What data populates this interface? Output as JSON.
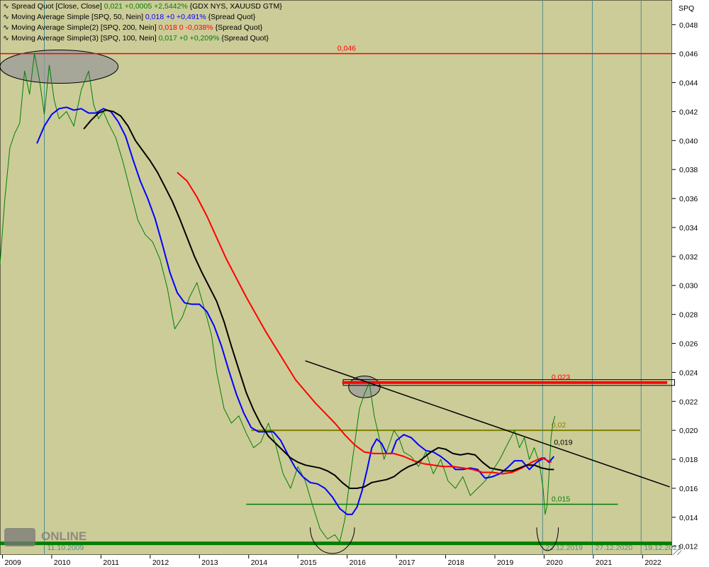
{
  "chart_data": {
    "type": "line",
    "axis_unit_label": "SPQ",
    "x_range": [
      2008.95,
      2022.6
    ],
    "ylim": [
      0.0114,
      0.0497
    ],
    "y_ticks": [
      {
        "v": 0.048,
        "label": "0,048"
      },
      {
        "v": 0.046,
        "label": "0,046"
      },
      {
        "v": 0.044,
        "label": "0,044"
      },
      {
        "v": 0.042,
        "label": "0,042"
      },
      {
        "v": 0.04,
        "label": "0,040"
      },
      {
        "v": 0.038,
        "label": "0,038"
      },
      {
        "v": 0.036,
        "label": "0,036"
      },
      {
        "v": 0.034,
        "label": "0,034"
      },
      {
        "v": 0.032,
        "label": "0,032"
      },
      {
        "v": 0.03,
        "label": "0,030"
      },
      {
        "v": 0.028,
        "label": "0,028"
      },
      {
        "v": 0.026,
        "label": "0,026"
      },
      {
        "v": 0.024,
        "label": "0,024"
      },
      {
        "v": 0.022,
        "label": "0,022"
      },
      {
        "v": 0.02,
        "label": "0,020"
      },
      {
        "v": 0.018,
        "label": "0,018"
      },
      {
        "v": 0.016,
        "label": "0,016"
      },
      {
        "v": 0.014,
        "label": "0,014"
      },
      {
        "v": 0.012,
        "label": "0,012"
      }
    ],
    "x_ticks": [
      {
        "v": 2009.0,
        "label": "2009"
      },
      {
        "v": 2010.0,
        "label": "2010"
      },
      {
        "v": 2011.0,
        "label": "2011"
      },
      {
        "v": 2012.0,
        "label": "2012"
      },
      {
        "v": 2013.0,
        "label": "2013"
      },
      {
        "v": 2014.0,
        "label": "2014"
      },
      {
        "v": 2015.0,
        "label": "2015"
      },
      {
        "v": 2016.0,
        "label": "2016"
      },
      {
        "v": 2017.0,
        "label": "2017"
      },
      {
        "v": 2018.0,
        "label": "2018"
      },
      {
        "v": 2019.0,
        "label": "2019"
      },
      {
        "v": 2020.0,
        "label": "2020"
      },
      {
        "v": 2021.0,
        "label": "2021"
      },
      {
        "v": 2022.0,
        "label": "2022"
      }
    ],
    "legend_entries": [
      {
        "name": "Spread Quot [Close, Close]",
        "value": "0,021",
        "change": "+0,0005",
        "pct": "+2,5442%",
        "suffix": "{GDX NYS, XAUUSD GTM}",
        "color": "#008000"
      },
      {
        "name": "Moving Average Simple [SPQ, 50, Nein]",
        "value": "0,018",
        "change": "+0",
        "pct": "+0,491%",
        "suffix": "{Spread Quot}",
        "color": "#0000ff"
      },
      {
        "name": "Moving Average Simple(2) [SPQ, 200, Nein]",
        "value": "0,018",
        "change": "0",
        "pct": "-0,038%",
        "suffix": "{Spread Quot}",
        "color": "#ff0000"
      },
      {
        "name": "Moving Average Simple(3) [SPQ, 100, Nein]",
        "value": "0,017",
        "change": "+0",
        "pct": "+0,209%",
        "suffix": "{Spread Quot}",
        "color": "#008000"
      }
    ],
    "legend_placement": "top-left",
    "grid": false,
    "series": [
      {
        "name": "Spread Quot",
        "color": "#008000",
        "width": 1,
        "x": [
          2008.95,
          2009.05,
          2009.15,
          2009.25,
          2009.35,
          2009.45,
          2009.55,
          2009.65,
          2009.75,
          2009.85,
          2009.95,
          2010.05,
          2010.15,
          2010.3,
          2010.45,
          2010.6,
          2010.75,
          2010.85,
          2010.95,
          2011.05,
          2011.15,
          2011.3,
          2011.45,
          2011.6,
          2011.75,
          2011.9,
          2012.05,
          2012.2,
          2012.35,
          2012.5,
          2012.65,
          2012.8,
          2012.95,
          2013.05,
          2013.15,
          2013.25,
          2013.35,
          2013.5,
          2013.65,
          2013.8,
          2013.95,
          2014.1,
          2014.25,
          2014.4,
          2014.55,
          2014.7,
          2014.85,
          2015.0,
          2015.15,
          2015.3,
          2015.45,
          2015.6,
          2015.75,
          2015.85,
          2015.95,
          2016.05,
          2016.15,
          2016.25,
          2016.35,
          2016.45,
          2016.55,
          2016.65,
          2016.75,
          2016.85,
          2016.95,
          2017.05,
          2017.15,
          2017.3,
          2017.45,
          2017.6,
          2017.75,
          2017.9,
          2018.05,
          2018.2,
          2018.35,
          2018.5,
          2018.65,
          2018.8,
          2018.95,
          2019.1,
          2019.25,
          2019.4,
          2019.5,
          2019.6,
          2019.7,
          2019.8,
          2019.9,
          2019.98,
          2020.02,
          2020.06,
          2020.1,
          2020.14,
          2020.18,
          2020.22
        ],
        "y": [
          0.0315,
          0.036,
          0.0395,
          0.0405,
          0.0412,
          0.0448,
          0.0432,
          0.046,
          0.0442,
          0.0418,
          0.0452,
          0.0428,
          0.0415,
          0.042,
          0.041,
          0.0435,
          0.0448,
          0.0425,
          0.0415,
          0.042,
          0.0412,
          0.0402,
          0.0385,
          0.0365,
          0.0345,
          0.0335,
          0.033,
          0.0318,
          0.0298,
          0.027,
          0.0278,
          0.0292,
          0.0302,
          0.029,
          0.0278,
          0.0265,
          0.024,
          0.0215,
          0.0205,
          0.021,
          0.0198,
          0.0188,
          0.0192,
          0.0205,
          0.019,
          0.017,
          0.016,
          0.0175,
          0.0165,
          0.0148,
          0.0132,
          0.0125,
          0.0128,
          0.0123,
          0.0138,
          0.0165,
          0.019,
          0.0215,
          0.0225,
          0.0233,
          0.021,
          0.0195,
          0.018,
          0.019,
          0.02,
          0.0195,
          0.0185,
          0.0182,
          0.0175,
          0.0185,
          0.017,
          0.018,
          0.0165,
          0.016,
          0.0168,
          0.0155,
          0.016,
          0.0165,
          0.0172,
          0.018,
          0.019,
          0.02,
          0.0188,
          0.0195,
          0.018,
          0.0188,
          0.0178,
          0.016,
          0.0142,
          0.0148,
          0.017,
          0.0195,
          0.0205,
          0.021
        ]
      },
      {
        "name": "Moving Average Simple [SPQ, 50, Nein]",
        "color": "#0000ff",
        "width": 2,
        "x": [
          2009.7,
          2009.85,
          2010.0,
          2010.15,
          2010.3,
          2010.45,
          2010.6,
          2010.75,
          2010.9,
          2011.05,
          2011.2,
          2011.35,
          2011.5,
          2011.65,
          2011.8,
          2011.95,
          2012.1,
          2012.25,
          2012.4,
          2012.55,
          2012.7,
          2012.85,
          2013.0,
          2013.15,
          2013.3,
          2013.45,
          2013.6,
          2013.75,
          2013.9,
          2014.05,
          2014.2,
          2014.35,
          2014.5,
          2014.65,
          2014.8,
          2014.95,
          2015.1,
          2015.25,
          2015.4,
          2015.55,
          2015.7,
          2015.85,
          2016.0,
          2016.1,
          2016.2,
          2016.3,
          2016.4,
          2016.5,
          2016.6,
          2016.7,
          2016.8,
          2016.9,
          2017.0,
          2017.15,
          2017.3,
          2017.45,
          2017.6,
          2017.75,
          2017.9,
          2018.05,
          2018.2,
          2018.35,
          2018.5,
          2018.65,
          2018.8,
          2018.95,
          2019.1,
          2019.25,
          2019.4,
          2019.55,
          2019.7,
          2019.85,
          2020.0,
          2020.1,
          2020.2
        ],
        "y": [
          0.0398,
          0.041,
          0.0418,
          0.0422,
          0.0423,
          0.0421,
          0.0422,
          0.0419,
          0.0419,
          0.0422,
          0.042,
          0.0413,
          0.0403,
          0.0387,
          0.0372,
          0.036,
          0.0346,
          0.0328,
          0.0309,
          0.0295,
          0.0288,
          0.0287,
          0.0287,
          0.0282,
          0.0272,
          0.0258,
          0.0241,
          0.0225,
          0.0212,
          0.0202,
          0.0199,
          0.0199,
          0.0199,
          0.0193,
          0.0183,
          0.0174,
          0.0168,
          0.0164,
          0.0163,
          0.016,
          0.0154,
          0.0146,
          0.0142,
          0.0142,
          0.0147,
          0.0158,
          0.0172,
          0.0188,
          0.0194,
          0.0191,
          0.0184,
          0.0184,
          0.0193,
          0.0197,
          0.0195,
          0.019,
          0.0186,
          0.0185,
          0.0182,
          0.0178,
          0.0173,
          0.0173,
          0.0174,
          0.0173,
          0.0167,
          0.0168,
          0.017,
          0.0174,
          0.0179,
          0.0179,
          0.0173,
          0.0178,
          0.0181,
          0.0178,
          0.0182
        ]
      },
      {
        "name": "Moving Average Simple(2) [SPQ, 200, Nein]",
        "color": "#ff0000",
        "width": 2,
        "x": [
          2012.55,
          2012.75,
          2012.95,
          2013.15,
          2013.35,
          2013.55,
          2013.75,
          2013.95,
          2014.15,
          2014.35,
          2014.55,
          2014.75,
          2014.95,
          2015.15,
          2015.35,
          2015.55,
          2015.75,
          2015.95,
          2016.15,
          2016.35,
          2016.55,
          2016.75,
          2016.95,
          2017.15,
          2017.35,
          2017.55,
          2017.75,
          2017.95,
          2018.15,
          2018.35,
          2018.55,
          2018.75,
          2018.95,
          2019.15,
          2019.35,
          2019.55,
          2019.75,
          2019.95,
          2020.15
        ],
        "y": [
          0.0378,
          0.0372,
          0.0361,
          0.0348,
          0.0333,
          0.0318,
          0.0305,
          0.0292,
          0.028,
          0.0268,
          0.0257,
          0.0246,
          0.0235,
          0.0227,
          0.0219,
          0.0212,
          0.0205,
          0.0197,
          0.019,
          0.0185,
          0.0184,
          0.0184,
          0.0184,
          0.0182,
          0.0179,
          0.0177,
          0.0176,
          0.0175,
          0.0175,
          0.0174,
          0.0173,
          0.0171,
          0.0171,
          0.017,
          0.0171,
          0.0174,
          0.0178,
          0.0181,
          0.0178
        ]
      },
      {
        "name": "Moving Average Simple(3) [SPQ, 100, Nein]",
        "color": "#000000",
        "width": 2,
        "x": [
          2010.65,
          2010.8,
          2010.95,
          2011.1,
          2011.25,
          2011.4,
          2011.55,
          2011.7,
          2011.85,
          2012.0,
          2012.15,
          2012.3,
          2012.45,
          2012.6,
          2012.75,
          2012.9,
          2013.05,
          2013.2,
          2013.35,
          2013.5,
          2013.65,
          2013.8,
          2013.95,
          2014.1,
          2014.25,
          2014.4,
          2014.55,
          2014.7,
          2014.85,
          2015.0,
          2015.15,
          2015.3,
          2015.45,
          2015.6,
          2015.75,
          2015.9,
          2016.05,
          2016.2,
          2016.35,
          2016.5,
          2016.65,
          2016.8,
          2016.95,
          2017.1,
          2017.25,
          2017.4,
          2017.55,
          2017.7,
          2017.85,
          2018.0,
          2018.15,
          2018.3,
          2018.45,
          2018.6,
          2018.75,
          2018.9,
          2019.05,
          2019.2,
          2019.35,
          2019.5,
          2019.65,
          2019.8,
          2019.95,
          2020.1,
          2020.2
        ],
        "y": [
          0.0408,
          0.0414,
          0.0419,
          0.0421,
          0.042,
          0.0417,
          0.041,
          0.04,
          0.0393,
          0.0386,
          0.0378,
          0.0368,
          0.0358,
          0.0346,
          0.0333,
          0.032,
          0.0309,
          0.0299,
          0.0289,
          0.0275,
          0.0258,
          0.0242,
          0.0226,
          0.0214,
          0.0204,
          0.0196,
          0.0191,
          0.0186,
          0.0181,
          0.0178,
          0.0176,
          0.0175,
          0.0174,
          0.0172,
          0.0169,
          0.0164,
          0.016,
          0.016,
          0.0161,
          0.0164,
          0.0165,
          0.0166,
          0.0168,
          0.0172,
          0.0175,
          0.0177,
          0.0181,
          0.0185,
          0.0188,
          0.0187,
          0.0184,
          0.0183,
          0.0184,
          0.0183,
          0.0178,
          0.0174,
          0.0173,
          0.0172,
          0.0172,
          0.0174,
          0.0176,
          0.0176,
          0.0174,
          0.0173,
          0.0173
        ]
      }
    ],
    "horizontal_lines": [
      {
        "y": 0.046,
        "x_from": 2008.95,
        "x_to": 2022.6,
        "color": "#ff0000",
        "width": 1.5,
        "label": "0,046",
        "label_x": 2015.8
      },
      {
        "y": 0.0233,
        "x_from": 2015.9,
        "x_to": 2022.5,
        "color": "#ff0000",
        "width": 4,
        "label": "0,023",
        "label_x": 2020.15
      },
      {
        "y": 0.02,
        "x_from": 2014.05,
        "x_to": 2021.95,
        "color": "#808000",
        "width": 2,
        "label": "0,02",
        "label_x": 2020.15
      },
      {
        "y": 0.0149,
        "x_from": 2013.95,
        "x_to": 2021.5,
        "color": "#008000",
        "width": 1.5,
        "label": "0,015",
        "label_x": 2020.15
      },
      {
        "y": 0.0122,
        "x_from": 2008.95,
        "x_to": 2022.6,
        "color": "#008000",
        "width": 5,
        "label": "",
        "label_x": 0
      }
    ],
    "trendlines": [
      {
        "x": [
          2015.15,
          2022.55
        ],
        "y": [
          0.0248,
          0.0161
        ],
        "color": "#000000",
        "width": 1.5,
        "label": "0,019",
        "label_x": 2020.2,
        "label_y": 0.019
      }
    ],
    "vertical_lines": [
      {
        "x": 2009.85,
        "label": "11.10.2009"
      },
      {
        "x": 2019.97,
        "label": "22.12.2019"
      },
      {
        "x": 2020.98,
        "label": "27.12.2020"
      },
      {
        "x": 2021.97,
        "label": "19.12.2021"
      }
    ],
    "highlight_ellipses": [
      {
        "cx": 2010.15,
        "cy": 0.0451,
        "rx": 1.2,
        "ry": 0.00115,
        "fill": "#999999"
      },
      {
        "cx": 2016.35,
        "cy": 0.023,
        "rx": 0.32,
        "ry": 0.00075,
        "fill": "#999999"
      }
    ],
    "highlight_arcs": [
      {
        "cx": 2015.7,
        "cy": 0.0124,
        "rx": 0.45,
        "ry": 0.0009
      },
      {
        "cx": 2020.07,
        "cy": 0.0125,
        "rx": 0.22,
        "ry": 0.0008
      }
    ],
    "rect_box": {
      "x_from": 2015.92,
      "x_to": 2022.65,
      "y_from": 0.0231,
      "y_to": 0.0235
    },
    "watermark": "tradesignal online"
  }
}
